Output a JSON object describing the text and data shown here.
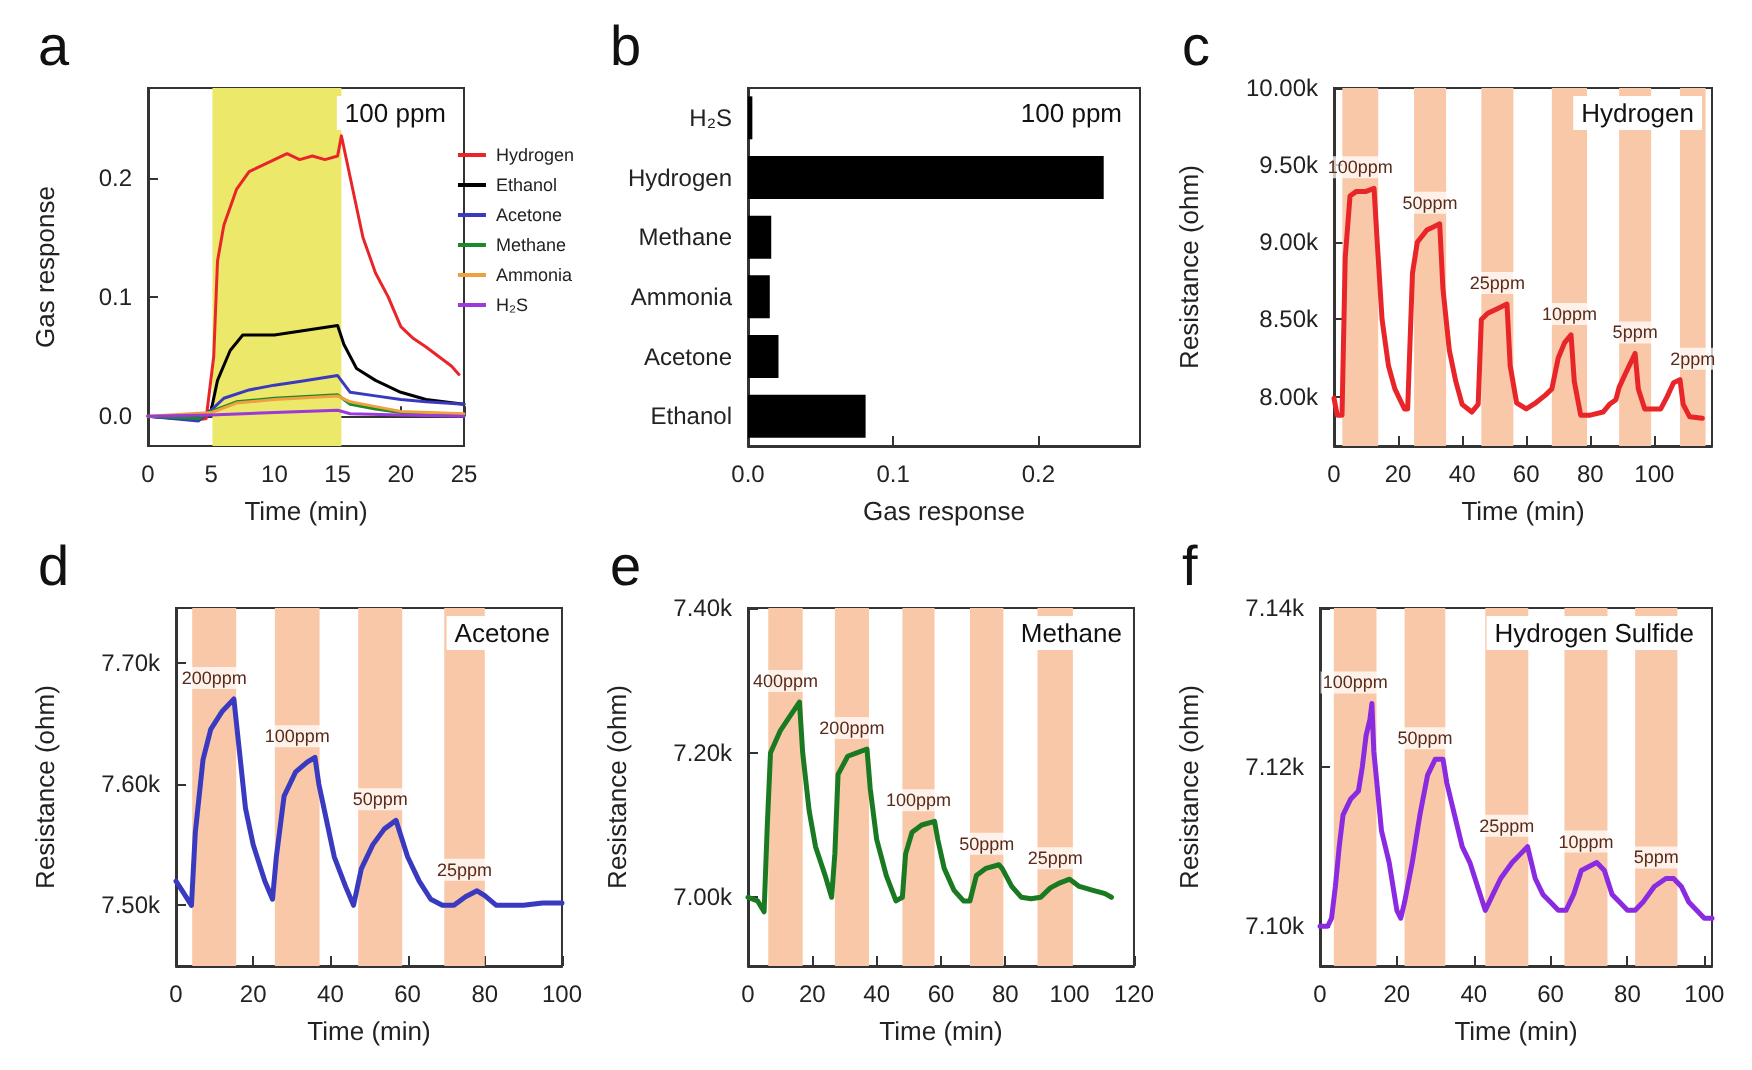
{
  "chart_data": [
    {
      "type": "line",
      "title": "a",
      "xlabel": "Time (min)",
      "ylabel": "Gas response",
      "xlim": [
        0,
        25
      ],
      "ylim": [
        -0.025,
        0.275
      ],
      "xticks": [
        0,
        5,
        10,
        15,
        20,
        25
      ],
      "yticks": [
        {
          "value": 0,
          "label": "0.0"
        },
        0.1,
        0.2
      ],
      "legend": "top right",
      "annotations": [
        "100 ppm"
      ],
      "bands": [
        {
          "axis": "x",
          "from": 5.1,
          "to": 15.3,
          "color": "#ece86a"
        }
      ],
      "series": [
        {
          "name": "Hydrogen",
          "color": "#e8262a",
          "x": [
            0,
            4,
            4.6,
            5.2,
            5.5,
            6,
            7,
            8,
            9,
            10,
            11,
            12,
            13,
            14,
            15,
            15.3,
            16,
            17,
            18,
            19,
            20,
            21,
            22,
            23,
            24,
            24.6
          ],
          "values": [
            0,
            -0.003,
            -0.002,
            0.05,
            0.13,
            0.16,
            0.19,
            0.205,
            0.21,
            0.215,
            0.22,
            0.215,
            0.218,
            0.215,
            0.218,
            0.235,
            0.2,
            0.15,
            0.12,
            0.1,
            0.075,
            0.065,
            0.058,
            0.05,
            0.042,
            0.035
          ]
        },
        {
          "name": "Ethanol",
          "color": "#000000",
          "x": [
            0,
            4,
            5,
            5.5,
            6.5,
            7.5,
            10,
            15,
            15.5,
            16.5,
            18,
            20,
            22,
            25
          ],
          "values": [
            0,
            -0.003,
            0.005,
            0.03,
            0.055,
            0.068,
            0.068,
            0.076,
            0.06,
            0.04,
            0.03,
            0.02,
            0.014,
            0.01
          ]
        },
        {
          "name": "Acetone",
          "color": "#3a3ac0",
          "x": [
            0,
            4,
            5,
            6,
            8,
            10,
            12,
            15,
            16,
            18,
            20,
            22,
            25
          ],
          "values": [
            0,
            -0.004,
            0.005,
            0.015,
            0.022,
            0.026,
            0.029,
            0.034,
            0.02,
            0.017,
            0.014,
            0.012,
            0.01
          ]
        },
        {
          "name": "Methane",
          "color": "#1a8a2a",
          "x": [
            0,
            4,
            5,
            7,
            10,
            15,
            16,
            18,
            20,
            25
          ],
          "values": [
            0,
            -0.002,
            0.004,
            0.012,
            0.015,
            0.018,
            0.01,
            0.006,
            0.003,
            0.001
          ]
        },
        {
          "name": "Ammonia",
          "color": "#f0a040",
          "x": [
            0,
            5,
            7,
            10,
            15,
            16,
            18,
            20,
            25
          ],
          "values": [
            0,
            0.003,
            0.011,
            0.014,
            0.017,
            0.012,
            0.008,
            0.004,
            0.002
          ]
        },
        {
          "name": "H₂S",
          "color": "#9a3ad8",
          "x": [
            0,
            5,
            10,
            15,
            16,
            20,
            25
          ],
          "values": [
            0,
            0.001,
            0.003,
            0.005,
            0.002,
            0.001,
            0
          ]
        }
      ]
    },
    {
      "type": "bar",
      "title": "b",
      "orientation": "horizontal",
      "xlabel": "Gas response",
      "xlim": [
        0,
        0.27
      ],
      "xticks": [
        {
          "value": 0,
          "label": "0.0"
        },
        0.1,
        0.2
      ],
      "annotations": [
        "100 ppm"
      ],
      "categories": [
        "H₂S",
        "Hydrogen",
        "Methane",
        "Ammonia",
        "Acetone",
        "Ethanol"
      ],
      "values": [
        0.003,
        0.245,
        0.016,
        0.015,
        0.021,
        0.081
      ],
      "color": "#000000"
    },
    {
      "type": "line",
      "title": "c",
      "xlabel": "Time (min)",
      "ylabel": "Resistance (ohm)",
      "xlim": [
        0,
        118
      ],
      "ylim": [
        7680,
        10000
      ],
      "xticks": [
        0,
        20,
        40,
        60,
        80,
        100
      ],
      "yticks": [
        {
          "value": 8000,
          "label": "8.00k"
        },
        {
          "value": 8500,
          "label": "8.50k"
        },
        {
          "value": 9000,
          "label": "9.00k"
        },
        {
          "value": 9500,
          "label": "9.50k"
        },
        {
          "value": 10000,
          "label": "10.00k"
        }
      ],
      "bands": [
        {
          "axis": "x",
          "from": 2.6,
          "to": 13.8,
          "color": "#f8c8a8"
        },
        {
          "axis": "x",
          "from": 25,
          "to": 35,
          "color": "#f8c8a8"
        },
        {
          "axis": "x",
          "from": 46,
          "to": 56,
          "color": "#f8c8a8"
        },
        {
          "axis": "x",
          "from": 68,
          "to": 79,
          "color": "#f8c8a8"
        },
        {
          "axis": "x",
          "from": 89,
          "to": 99,
          "color": "#f8c8a8"
        },
        {
          "axis": "x",
          "from": 108,
          "to": 116,
          "color": "#f8c8a8"
        }
      ],
      "annotations": [
        "Hydrogen",
        "100ppm",
        "50ppm",
        "25ppm",
        "10ppm",
        "5ppm",
        "2ppm"
      ],
      "series": [
        {
          "color": "#e8262a",
          "x": [
            0,
            1,
            2.5,
            3.5,
            5,
            7,
            10,
            12.5,
            13.5,
            15,
            17,
            19,
            22,
            23,
            24.5,
            26,
            29,
            31,
            33,
            34,
            36,
            38,
            40,
            43,
            45,
            46,
            48,
            51,
            54,
            55,
            57,
            60,
            63,
            66,
            68,
            70,
            72,
            74,
            75,
            77,
            80,
            84,
            86,
            88,
            89,
            91,
            94,
            95,
            97,
            100,
            102,
            104,
            106,
            108,
            109,
            111,
            115
          ],
          "values": [
            7990,
            7880,
            7880,
            8900,
            9300,
            9330,
            9330,
            9350,
            9000,
            8500,
            8200,
            8050,
            7920,
            7920,
            8800,
            9000,
            9080,
            9100,
            9120,
            8700,
            8300,
            8100,
            7950,
            7900,
            7950,
            8500,
            8540,
            8570,
            8600,
            8200,
            7960,
            7920,
            7960,
            8010,
            8050,
            8250,
            8350,
            8400,
            8100,
            7880,
            7880,
            7900,
            7950,
            7980,
            8060,
            8150,
            8280,
            8050,
            7920,
            7920,
            7920,
            8000,
            8090,
            8110,
            7950,
            7870,
            7860
          ]
        }
      ]
    },
    {
      "type": "line",
      "title": "d",
      "xlabel": "Time (min)",
      "ylabel": "Resistance (ohm)",
      "xlim": [
        0,
        100
      ],
      "ylim": [
        7450,
        7745
      ],
      "xticks": [
        0,
        20,
        40,
        60,
        80,
        100
      ],
      "yticks": [
        {
          "value": 7500,
          "label": "7.50k"
        },
        {
          "value": 7600,
          "label": "7.60k"
        },
        {
          "value": 7700,
          "label": "7.70k"
        }
      ],
      "bands": [
        {
          "axis": "x",
          "from": 4.2,
          "to": 15.6,
          "color": "#f8c8a8"
        },
        {
          "axis": "x",
          "from": 25.6,
          "to": 37.2,
          "color": "#f8c8a8"
        },
        {
          "axis": "x",
          "from": 47.2,
          "to": 58.6,
          "color": "#f8c8a8"
        },
        {
          "axis": "x",
          "from": 69.5,
          "to": 80,
          "color": "#f8c8a8"
        }
      ],
      "annotations": [
        "Acetone",
        "200ppm",
        "100ppm",
        "50ppm",
        "25ppm"
      ],
      "series": [
        {
          "color": "#3a3ac0",
          "x": [
            0,
            2,
            4,
            5,
            7,
            9,
            12,
            15,
            16,
            18,
            20,
            23,
            25,
            26,
            28,
            31,
            34,
            36,
            37,
            39,
            41,
            44,
            46,
            48,
            51,
            54,
            57,
            58,
            60,
            63,
            66,
            69,
            72,
            75,
            78,
            80,
            83,
            86,
            90,
            95,
            100
          ],
          "values": [
            7520,
            7510,
            7500,
            7560,
            7620,
            7645,
            7660,
            7670,
            7640,
            7580,
            7550,
            7520,
            7505,
            7540,
            7590,
            7610,
            7618,
            7622,
            7600,
            7570,
            7540,
            7515,
            7500,
            7530,
            7550,
            7563,
            7570,
            7560,
            7540,
            7520,
            7505,
            7500,
            7500,
            7507,
            7512,
            7508,
            7500,
            7500,
            7500,
            7502,
            7502
          ]
        }
      ]
    },
    {
      "type": "line",
      "title": "e",
      "xlabel": "Time (min)",
      "ylabel": "Resistance (ohm)",
      "xlim": [
        0,
        120
      ],
      "ylim": [
        6905,
        7400
      ],
      "xticks": [
        0,
        20,
        40,
        60,
        80,
        100,
        120
      ],
      "yticks": [
        {
          "value": 7000,
          "label": "7.00k"
        },
        {
          "value": 7200,
          "label": "7.20k"
        },
        {
          "value": 7400,
          "label": "7.40k"
        }
      ],
      "bands": [
        {
          "axis": "x",
          "from": 6.3,
          "to": 17,
          "color": "#f8c8a8"
        },
        {
          "axis": "x",
          "from": 27,
          "to": 37.6,
          "color": "#f8c8a8"
        },
        {
          "axis": "x",
          "from": 48,
          "to": 58,
          "color": "#f8c8a8"
        },
        {
          "axis": "x",
          "from": 69,
          "to": 79.4,
          "color": "#f8c8a8"
        },
        {
          "axis": "x",
          "from": 90,
          "to": 101,
          "color": "#f8c8a8"
        }
      ],
      "annotations": [
        "Methane",
        "400ppm",
        "200ppm",
        "100ppm",
        "50ppm",
        "25ppm"
      ],
      "series": [
        {
          "color": "#1a7a22",
          "x": [
            0,
            3,
            5,
            6,
            7,
            10,
            13,
            16,
            17,
            19,
            21,
            24,
            26,
            27,
            28,
            31,
            34,
            37,
            38,
            40,
            43,
            46,
            48,
            49,
            51,
            54,
            58,
            59,
            61,
            64,
            67,
            69,
            71,
            74,
            78,
            79,
            82,
            85,
            88,
            91,
            94,
            97,
            100,
            103,
            107,
            111,
            113
          ],
          "values": [
            7000,
            6995,
            6980,
            7100,
            7200,
            7230,
            7250,
            7270,
            7200,
            7120,
            7070,
            7030,
            7000,
            7060,
            7170,
            7195,
            7200,
            7205,
            7150,
            7080,
            7030,
            6995,
            7000,
            7060,
            7090,
            7100,
            7105,
            7080,
            7040,
            7010,
            6995,
            6995,
            7030,
            7040,
            7045,
            7040,
            7015,
            7000,
            6998,
            7000,
            7013,
            7020,
            7025,
            7015,
            7010,
            7005,
            7000
          ]
        }
      ]
    },
    {
      "type": "line",
      "title": "f",
      "xlabel": "Time (min)",
      "ylabel": "Resistance (ohm)",
      "xlim": [
        0,
        102
      ],
      "ylim": [
        7095,
        7140
      ],
      "xticks": [
        0,
        20,
        40,
        60,
        80,
        100
      ],
      "yticks": [
        {
          "value": 7100,
          "label": "7.10k"
        },
        {
          "value": 7120,
          "label": "7.12k"
        },
        {
          "value": 7140,
          "label": "7.14k"
        }
      ],
      "bands": [
        {
          "axis": "x",
          "from": 3.6,
          "to": 14.7,
          "color": "#f8c8a8"
        },
        {
          "axis": "x",
          "from": 22,
          "to": 32.6,
          "color": "#f8c8a8"
        },
        {
          "axis": "x",
          "from": 43,
          "to": 54.2,
          "color": "#f8c8a8"
        },
        {
          "axis": "x",
          "from": 63.6,
          "to": 74.8,
          "color": "#f8c8a8"
        },
        {
          "axis": "x",
          "from": 82,
          "to": 93,
          "color": "#f8c8a8"
        }
      ],
      "annotations": [
        "Hydrogen Sulfide",
        "100ppm",
        "50ppm",
        "25ppm",
        "10ppm",
        "5ppm"
      ],
      "series": [
        {
          "color": "#8a2be2",
          "x": [
            0,
            2,
            3,
            4,
            5,
            6,
            8,
            10,
            11,
            12,
            13,
            13.5,
            14,
            16,
            18,
            20,
            21,
            22,
            24,
            26,
            28,
            30,
            32,
            33,
            35,
            37,
            39,
            41,
            43,
            45,
            47,
            50,
            52,
            54,
            56,
            58,
            60,
            62,
            64,
            66,
            68,
            72,
            74,
            76,
            78,
            80,
            82,
            84,
            87,
            90,
            92,
            94,
            96,
            98,
            100,
            102
          ],
          "values": [
            7100,
            7100,
            7101,
            7105,
            7110,
            7114,
            7116,
            7117,
            7120,
            7124,
            7126,
            7128,
            7122,
            7112,
            7108,
            7102,
            7101,
            7103,
            7108,
            7114,
            7119,
            7121,
            7121,
            7118,
            7114,
            7110,
            7108,
            7105,
            7102,
            7104,
            7106,
            7108,
            7109,
            7110,
            7106,
            7104,
            7103,
            7102,
            7102,
            7104,
            7107,
            7108,
            7107,
            7104,
            7103,
            7102,
            7102,
            7103,
            7105,
            7106,
            7106,
            7105,
            7103,
            7102,
            7101,
            7101
          ]
        }
      ]
    }
  ]
}
